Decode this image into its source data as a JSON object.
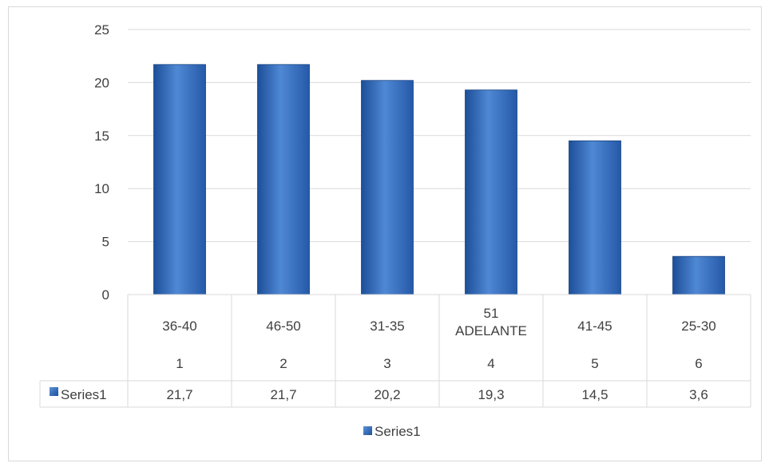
{
  "chart_data": {
    "type": "bar",
    "categories": [
      {
        "label": "36-40",
        "rank": "1"
      },
      {
        "label": "46-50",
        "rank": "2"
      },
      {
        "label": "31-35",
        "rank": "3"
      },
      {
        "label": "51 ADELANTE",
        "label_lines": [
          "51",
          "ADELANTE"
        ],
        "rank": "4"
      },
      {
        "label": "41-45",
        "rank": "5"
      },
      {
        "label": "25-30",
        "rank": "6"
      }
    ],
    "series": [
      {
        "name": "Series1",
        "values": [
          21.7,
          21.7,
          20.2,
          19.3,
          14.5,
          3.6
        ],
        "value_labels": [
          "21,7",
          "21,7",
          "20,2",
          "19,3",
          "14,5",
          "3,6"
        ]
      }
    ],
    "ylim": [
      0,
      25
    ],
    "yticks": [
      0,
      5,
      10,
      15,
      20,
      25
    ],
    "grid": true,
    "legend": "bottom",
    "data_table": true,
    "colors": {
      "bar": "#2e6fc4",
      "bar_light": "#5b93d9",
      "bar_dark": "#1d4f99",
      "grid": "#d9d9d9",
      "text": "#404040"
    }
  }
}
